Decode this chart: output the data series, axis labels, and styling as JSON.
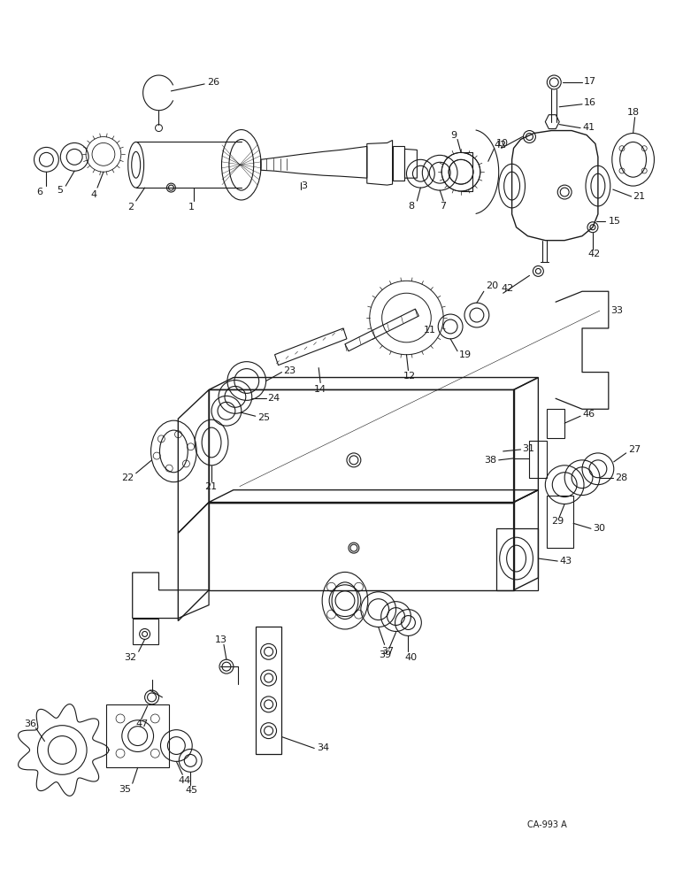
{
  "background_color": "#ffffff",
  "figure_width": 7.72,
  "figure_height": 10.0,
  "dpi": 100,
  "watermark": "CA-993 A",
  "line_color": "#1a1a1a"
}
